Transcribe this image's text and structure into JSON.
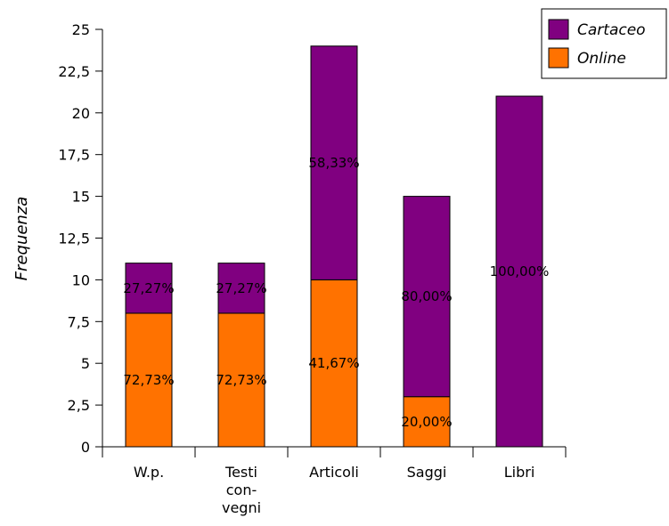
{
  "chart_data": {
    "type": "bar",
    "stacked": true,
    "categories": [
      "W.p.",
      "Testi con-vegni",
      "Articoli",
      "Saggi",
      "Libri"
    ],
    "category_label_lines": [
      [
        "W.p."
      ],
      [
        "Testi",
        "con-",
        "vegni"
      ],
      [
        "Articoli"
      ],
      [
        "Saggi"
      ],
      [
        "Libri"
      ]
    ],
    "series": [
      {
        "name": "Online",
        "color": "#ff7200",
        "values": [
          8,
          8,
          10,
          3,
          0
        ],
        "labels": [
          "72,73%",
          "72,73%",
          "41,67%",
          "20,00%",
          ""
        ]
      },
      {
        "name": "Cartaceo",
        "color": "#800080",
        "values": [
          3,
          3,
          14,
          12,
          21
        ],
        "labels": [
          "27,27%",
          "27,27%",
          "58,33%",
          "80,00%",
          "100,00%"
        ]
      }
    ],
    "title": "",
    "xlabel": "",
    "ylabel": "Frequenza",
    "ylim": [
      0,
      25
    ],
    "yticks": [
      0,
      2.5,
      5,
      7.5,
      10,
      12.5,
      15,
      17.5,
      20,
      22.5,
      25
    ],
    "ytick_labels": [
      "0",
      "2,5",
      "5",
      "7,5",
      "10",
      "12,5",
      "15",
      "17,5",
      "20",
      "22,5",
      "25"
    ],
    "grid": false,
    "legend_position": "top-right",
    "legend_order": [
      "Cartaceo",
      "Online"
    ]
  }
}
